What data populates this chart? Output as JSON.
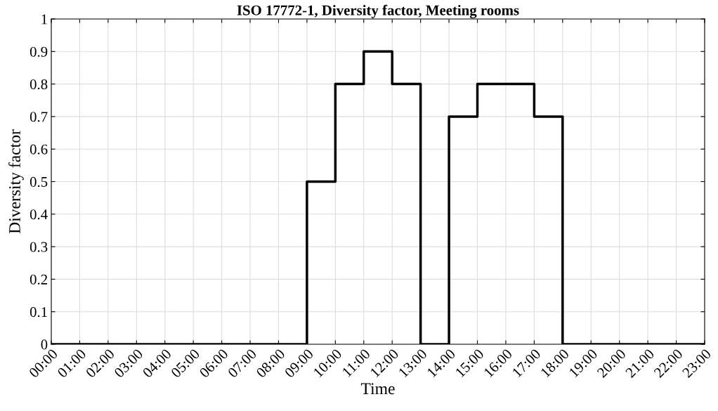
{
  "chart_data": {
    "type": "step",
    "title": "ISO 17772-1, Diversity factor, Meeting rooms",
    "xlabel": "Time",
    "ylabel": "Diversity factor",
    "x": [
      0,
      1,
      2,
      3,
      4,
      5,
      6,
      7,
      8,
      9,
      10,
      11,
      12,
      13,
      14,
      15,
      16,
      17,
      18,
      19,
      20,
      21,
      22,
      23
    ],
    "series": [
      {
        "color": "#000000",
        "values": [
          0,
          0,
          0,
          0,
          0,
          0,
          0,
          0,
          0,
          0.5,
          0.8,
          0.9,
          0.8,
          0,
          0.7,
          0.8,
          0.8,
          0.7,
          0,
          0,
          0,
          0,
          0,
          0
        ]
      }
    ],
    "xlim": [
      0,
      23
    ],
    "xticks": [
      {
        "value": 0,
        "label": "00:00"
      },
      {
        "value": 1,
        "label": "01:00"
      },
      {
        "value": 2,
        "label": "02:00"
      },
      {
        "value": 3,
        "label": "03:00"
      },
      {
        "value": 4,
        "label": "04:00"
      },
      {
        "value": 5,
        "label": "05:00"
      },
      {
        "value": 6,
        "label": "06:00"
      },
      {
        "value": 7,
        "label": "07:00"
      },
      {
        "value": 8,
        "label": "08:00"
      },
      {
        "value": 9,
        "label": "09:00"
      },
      {
        "value": 10,
        "label": "10:00"
      },
      {
        "value": 11,
        "label": "11:00"
      },
      {
        "value": 12,
        "label": "12:00"
      },
      {
        "value": 13,
        "label": "13:00"
      },
      {
        "value": 14,
        "label": "14:00"
      },
      {
        "value": 15,
        "label": "15:00"
      },
      {
        "value": 16,
        "label": "16:00"
      },
      {
        "value": 17,
        "label": "17:00"
      },
      {
        "value": 18,
        "label": "18:00"
      },
      {
        "value": 19,
        "label": "19:00"
      },
      {
        "value": 20,
        "label": "20:00"
      },
      {
        "value": 21,
        "label": "21:00"
      },
      {
        "value": 22,
        "label": "22:00"
      },
      {
        "value": 23,
        "label": "23:00"
      }
    ],
    "ylim": [
      0,
      1
    ],
    "yticks": [
      0,
      0.1,
      0.2,
      0.3,
      0.4,
      0.5,
      0.6,
      0.7,
      0.8,
      0.9,
      1
    ],
    "grid": true,
    "marker": "none",
    "line_style": "solid"
  }
}
